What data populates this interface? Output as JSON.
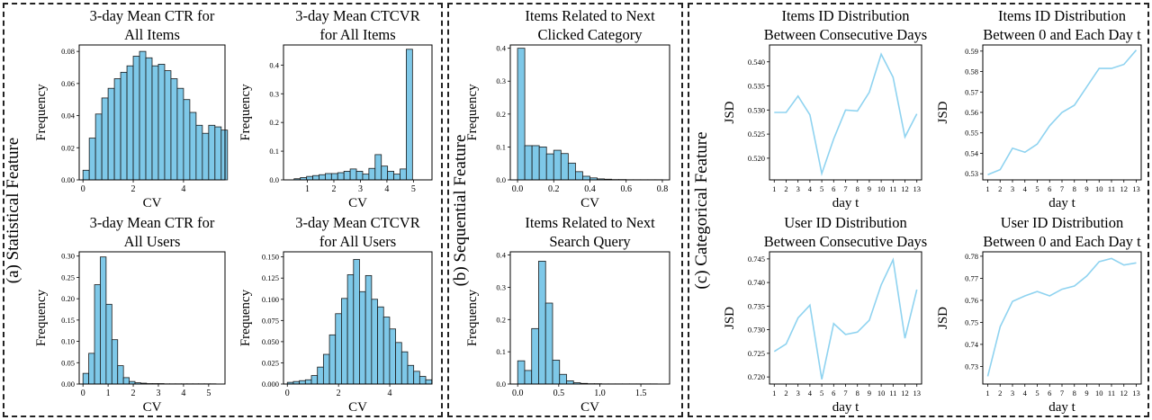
{
  "panels": {
    "a": {
      "label": "(a) Statistical Feature"
    },
    "b": {
      "label": "(b) Sequential Feature"
    },
    "c": {
      "label": "(c) Categorical Feature"
    }
  },
  "colors": {
    "bar_fill": "#7ec8e8",
    "bar_edge": "#1a1a1a",
    "line": "#8fd3f0",
    "frame": "#222222"
  },
  "chart_data": [
    {
      "id": "ctr-items",
      "panel": "a",
      "type": "bar",
      "title": [
        "3-day Mean CTR for",
        "All Items"
      ],
      "xlabel": "CV",
      "ylabel": "Frequency",
      "xlim": [
        -0.15,
        5.65
      ],
      "ylim": [
        0,
        0.084
      ],
      "xticks": [
        0,
        2,
        4
      ],
      "yticks": [
        0,
        0.02,
        0.04,
        0.06,
        0.08
      ],
      "ytick_labels": [
        "0.00",
        "0.02",
        "0.04",
        "0.06",
        "0.08"
      ],
      "bin_start": 0.0,
      "bin_width": 0.25,
      "values": [
        0.006,
        0.026,
        0.041,
        0.051,
        0.057,
        0.063,
        0.067,
        0.071,
        0.077,
        0.08,
        0.076,
        0.071,
        0.072,
        0.068,
        0.063,
        0.057,
        0.05,
        0.042,
        0.034,
        0.029,
        0.034,
        0.033,
        0.031
      ]
    },
    {
      "id": "ctcvr-items",
      "panel": "a",
      "type": "bar",
      "title": [
        "3-day Mean CTCVR",
        "for All Items"
      ],
      "xlabel": "CV",
      "ylabel": "Frequency",
      "xlim": [
        0.1,
        5.7
      ],
      "ylim": [
        0,
        0.47
      ],
      "xticks": [
        1,
        2,
        3,
        4,
        5
      ],
      "yticks": [
        0,
        0.1,
        0.2,
        0.3,
        0.4
      ],
      "ytick_labels": [
        "0.0",
        "0.1",
        "0.2",
        "0.3",
        "0.4"
      ],
      "bin_start": 0.5,
      "bin_width": 0.235,
      "values": [
        0.004,
        0.008,
        0.012,
        0.015,
        0.018,
        0.022,
        0.022,
        0.025,
        0.03,
        0.038,
        0.03,
        0.02,
        0.04,
        0.088,
        0.048,
        0.03,
        0.02,
        0.038,
        0.455
      ]
    },
    {
      "id": "ctr-users",
      "panel": "a",
      "type": "bar",
      "title": [
        "3-day Mean CTR for",
        "All Users"
      ],
      "xlabel": "CV",
      "ylabel": "Frequency",
      "xlim": [
        -0.15,
        5.65
      ],
      "ylim": [
        0,
        0.31
      ],
      "xticks": [
        0,
        1,
        2,
        3,
        4,
        5
      ],
      "yticks": [
        0,
        0.05,
        0.1,
        0.15,
        0.2,
        0.25,
        0.3
      ],
      "ytick_labels": [
        "0.00",
        "0.05",
        "0.10",
        "0.15",
        "0.20",
        "0.25",
        "0.30"
      ],
      "bin_start": 0.0,
      "bin_width": 0.23,
      "values": [
        0.025,
        0.072,
        0.233,
        0.298,
        0.187,
        0.104,
        0.043,
        0.015,
        0.006,
        0.003,
        0.002,
        0.001,
        0.001,
        0.001,
        0.0005,
        0.0005,
        0.0005,
        0.0005,
        0.0005,
        0.0005,
        0.0005,
        0.0005,
        0.0005
      ]
    },
    {
      "id": "ctcvr-users",
      "panel": "a",
      "type": "bar",
      "title": [
        "3-day Mean CTCVR",
        "for All Users"
      ],
      "xlabel": "CV",
      "ylabel": "Frequency",
      "xlim": [
        -0.15,
        5.65
      ],
      "ylim": [
        0,
        0.156
      ],
      "xticks": [
        0,
        2,
        4
      ],
      "yticks": [
        0,
        0.025,
        0.05,
        0.075,
        0.1,
        0.125,
        0.15
      ],
      "ytick_labels": [
        "0.000",
        "0.025",
        "0.050",
        "0.075",
        "0.100",
        "0.125",
        "0.150"
      ],
      "bin_start": 0.0,
      "bin_width": 0.235,
      "values": [
        0.002,
        0.003,
        0.004,
        0.005,
        0.01,
        0.02,
        0.035,
        0.058,
        0.083,
        0.101,
        0.129,
        0.147,
        0.109,
        0.128,
        0.1,
        0.091,
        0.079,
        0.065,
        0.049,
        0.038,
        0.022,
        0.015,
        0.009,
        0.005
      ]
    },
    {
      "id": "next-clicked-category",
      "panel": "b",
      "type": "bar",
      "title": [
        "Items Related to Next",
        "Clicked Category"
      ],
      "xlabel": "CV",
      "ylabel": "Frequency",
      "xlim": [
        -0.04,
        0.84
      ],
      "ylim": [
        0,
        0.41
      ],
      "xticks": [
        0,
        0.2,
        0.4,
        0.6,
        0.8
      ],
      "yticks": [
        0,
        0.1,
        0.2,
        0.3,
        0.4
      ],
      "ytick_labels": [
        "0.0",
        "0.1",
        "0.2",
        "0.3",
        "0.4"
      ],
      "xtick_labels": [
        "0.0",
        "0.2",
        "0.4",
        "0.6",
        "0.8"
      ],
      "bin_start": 0.0,
      "bin_width": 0.04,
      "values": [
        0.4,
        0.104,
        0.104,
        0.1,
        0.079,
        0.09,
        0.08,
        0.051,
        0.025,
        0.011,
        0.006,
        0.003,
        0.002,
        0.001,
        0.001,
        0.0005,
        0.0005,
        0.0005,
        0.0005,
        0.0005
      ]
    },
    {
      "id": "next-search-query",
      "panel": "b",
      "type": "bar",
      "title": [
        "Items Related to Next",
        "Search Query"
      ],
      "xlabel": "CV",
      "ylabel": "Frequency",
      "xlim": [
        -0.09,
        1.85
      ],
      "ylim": [
        0,
        0.41
      ],
      "xticks": [
        0,
        0.5,
        1.0,
        1.5
      ],
      "yticks": [
        0,
        0.1,
        0.2,
        0.3,
        0.4
      ],
      "ytick_labels": [
        "0.0",
        "0.1",
        "0.2",
        "0.3",
        "0.4"
      ],
      "xtick_labels": [
        "0.0",
        "0.5",
        "1.0",
        "1.5"
      ],
      "bin_start": 0.0,
      "bin_width": 0.085,
      "values": [
        0.072,
        0.042,
        0.172,
        0.381,
        0.251,
        0.074,
        0.03,
        0.01,
        0.004,
        0.002,
        0.001,
        0.001,
        0.0005,
        0.0005,
        0.0005,
        0.0005,
        0.0005,
        0.0005,
        0.0005,
        0.0005
      ]
    },
    {
      "id": "items-consecutive",
      "panel": "c",
      "type": "line",
      "title": [
        "Items ID Distribution",
        "Between Consecutive Days"
      ],
      "xlabel": "day t",
      "ylabel": "JSD",
      "xlim": [
        0.6,
        13.4
      ],
      "ylim": [
        0.5155,
        0.5435
      ],
      "x": [
        1,
        2,
        3,
        4,
        5,
        6,
        7,
        8,
        9,
        10,
        11,
        12,
        13
      ],
      "xticks": [
        1,
        2,
        3,
        4,
        5,
        6,
        7,
        8,
        9,
        10,
        11,
        12,
        13
      ],
      "yticks": [
        0.52,
        0.525,
        0.53,
        0.535,
        0.54
      ],
      "ytick_labels": [
        "0.520",
        "0.525",
        "0.530",
        "0.535",
        "0.540"
      ],
      "values": [
        0.5295,
        0.5295,
        0.5329,
        0.529,
        0.5168,
        0.524,
        0.53,
        0.5298,
        0.5337,
        0.5416,
        0.5368,
        0.5244,
        0.5292
      ]
    },
    {
      "id": "items-from-zero",
      "panel": "c",
      "type": "line",
      "title": [
        "Items ID Distribution",
        "Between 0 and Each Day t"
      ],
      "xlabel": "day t",
      "ylabel": "JSD",
      "xlim": [
        0.6,
        13.4
      ],
      "ylim": [
        0.527,
        0.593
      ],
      "x": [
        1,
        2,
        3,
        4,
        5,
        6,
        7,
        8,
        9,
        10,
        11,
        12,
        13
      ],
      "xticks": [
        1,
        2,
        3,
        4,
        5,
        6,
        7,
        8,
        9,
        10,
        11,
        12,
        13
      ],
      "yticks": [
        0.53,
        0.54,
        0.55,
        0.56,
        0.57,
        0.58,
        0.59
      ],
      "ytick_labels": [
        "0.53",
        "0.54",
        "0.55",
        "0.56",
        "0.57",
        "0.58",
        "0.59"
      ],
      "values": [
        0.5295,
        0.532,
        0.5425,
        0.5405,
        0.5445,
        0.5535,
        0.56,
        0.5635,
        0.5725,
        0.5815,
        0.5815,
        0.5835,
        0.5905
      ]
    },
    {
      "id": "users-consecutive",
      "panel": "c",
      "type": "line",
      "title": [
        "User ID Distribution",
        "Between Consecutive Days"
      ],
      "xlabel": "day t",
      "ylabel": "JSD",
      "xlim": [
        0.6,
        13.4
      ],
      "ylim": [
        0.7185,
        0.7465
      ],
      "x": [
        1,
        2,
        3,
        4,
        5,
        6,
        7,
        8,
        9,
        10,
        11,
        12,
        13
      ],
      "xticks": [
        1,
        2,
        3,
        4,
        5,
        6,
        7,
        8,
        9,
        10,
        11,
        12,
        13
      ],
      "yticks": [
        0.72,
        0.725,
        0.73,
        0.735,
        0.74,
        0.745
      ],
      "ytick_labels": [
        "0.720",
        "0.725",
        "0.730",
        "0.735",
        "0.740",
        "0.745"
      ],
      "values": [
        0.7254,
        0.727,
        0.7325,
        0.7352,
        0.7195,
        0.7313,
        0.729,
        0.7295,
        0.732,
        0.7395,
        0.7448,
        0.7282,
        0.7385
      ]
    },
    {
      "id": "users-from-zero",
      "panel": "c",
      "type": "line",
      "title": [
        "User ID Distribution",
        "Between 0 and Each Day t"
      ],
      "xlabel": "day t",
      "ylabel": "JSD",
      "xlim": [
        0.6,
        13.4
      ],
      "ylim": [
        0.722,
        0.782
      ],
      "x": [
        1,
        2,
        3,
        4,
        5,
        6,
        7,
        8,
        9,
        10,
        11,
        12,
        13
      ],
      "xticks": [
        1,
        2,
        3,
        4,
        5,
        6,
        7,
        8,
        9,
        10,
        11,
        12,
        13
      ],
      "yticks": [
        0.73,
        0.74,
        0.75,
        0.76,
        0.77,
        0.78
      ],
      "ytick_labels": [
        "0.73",
        "0.74",
        "0.75",
        "0.76",
        "0.77",
        "0.78"
      ],
      "values": [
        0.7255,
        0.748,
        0.7595,
        0.762,
        0.764,
        0.762,
        0.765,
        0.7665,
        0.771,
        0.7775,
        0.779,
        0.776,
        0.777
      ]
    }
  ]
}
